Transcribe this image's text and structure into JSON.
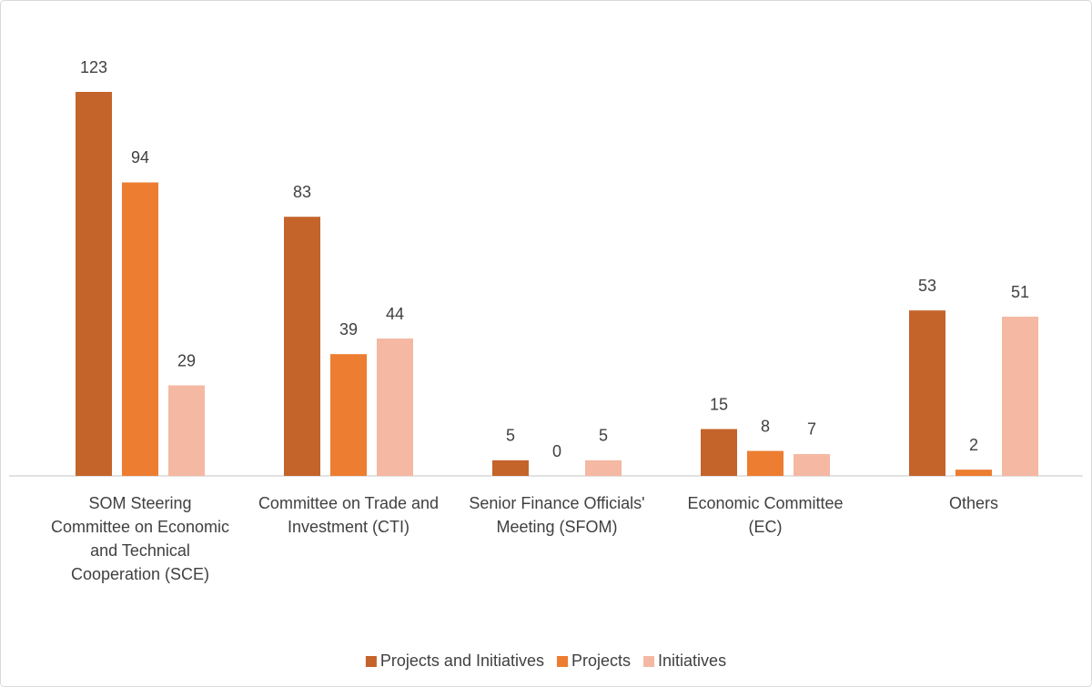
{
  "chart_data": {
    "type": "bar",
    "categories": [
      "SOM Steering Committee on Economic and Technical Cooperation (SCE)",
      "Committee on Trade and Investment (CTI)",
      "Senior Finance Officials' Meeting (SFOM)",
      "Economic Committee (EC)",
      "Others"
    ],
    "series": [
      {
        "name": "Projects and Initiatives",
        "color": "#c4632a",
        "values": [
          123,
          83,
          5,
          15,
          53
        ]
      },
      {
        "name": "Projects",
        "color": "#ed7d31",
        "values": [
          94,
          39,
          0,
          8,
          2
        ]
      },
      {
        "name": "Initiatives",
        "color": "#f4b8a3",
        "values": [
          29,
          44,
          5,
          7,
          51
        ]
      }
    ],
    "legend": "bottom"
  }
}
